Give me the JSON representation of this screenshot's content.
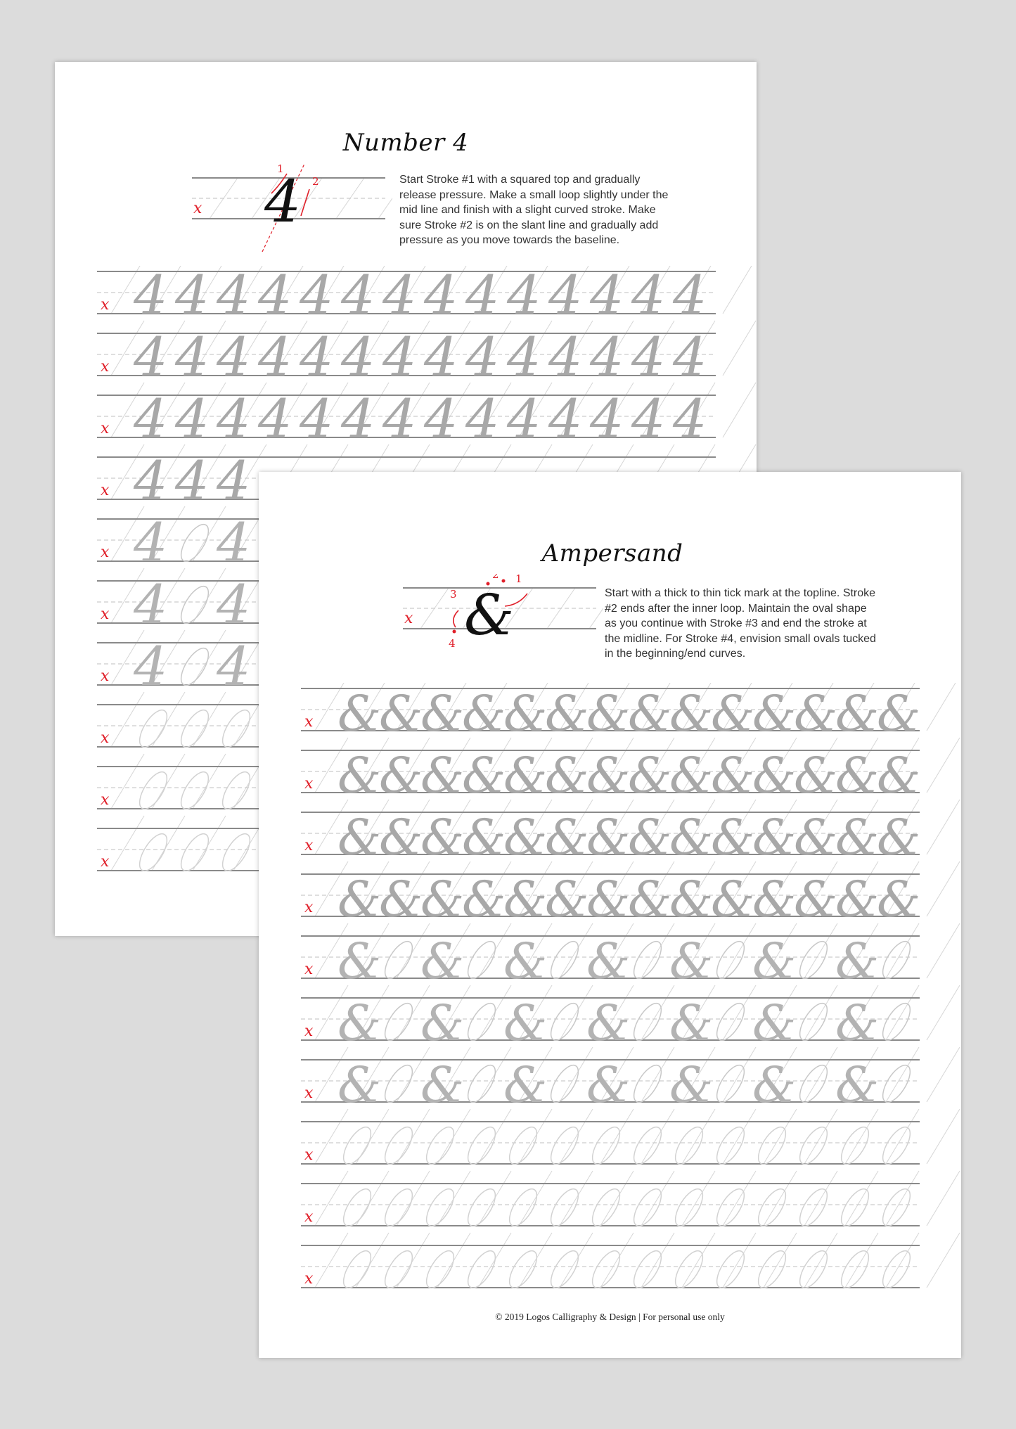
{
  "pages": [
    {
      "id": "back",
      "title": "Number 4",
      "glyph": "4",
      "instructions": "Start Stroke #1 with a squared top and gradually release pressure. Make a small loop slightly under the mid line and finish with a slight curved stroke. Make sure Stroke #2 is on the slant line and gradually add pressure as you move towards the baseline.",
      "stroke_numbers": [
        "1",
        "2"
      ],
      "x_height_marker": "x",
      "practice_rows": [
        "full",
        "full",
        "full",
        "full",
        "alternate",
        "alternate",
        "alternate",
        "ovals",
        "ovals",
        "ovals"
      ]
    },
    {
      "id": "front",
      "title": "Ampersand",
      "glyph": "&",
      "instructions": "Start with a thick to thin tick mark at the topline. Stroke #2 ends after the inner loop. Maintain the oval shape as you continue with Stroke #3 and end the stroke at the midline. For Stroke #4, envision small ovals tucked in the beginning/end curves.",
      "stroke_numbers": [
        "1",
        "2",
        "3",
        "4"
      ],
      "x_height_marker": "x",
      "practice_rows": [
        "full",
        "full",
        "full",
        "full",
        "alternate",
        "alternate",
        "alternate",
        "ovals",
        "ovals",
        "ovals"
      ],
      "footer": "© 2019 Logos Calligraphy & Design | For personal use only"
    }
  ],
  "colors": {
    "background": "#dcdcdc",
    "guide_line": "#8a8a8a",
    "dashed_midline": "#cccccc",
    "slant_line": "#d6d6d6",
    "trace_glyph": "#a8a8a8",
    "marker_red": "#e0202a",
    "ink": "#111111"
  }
}
